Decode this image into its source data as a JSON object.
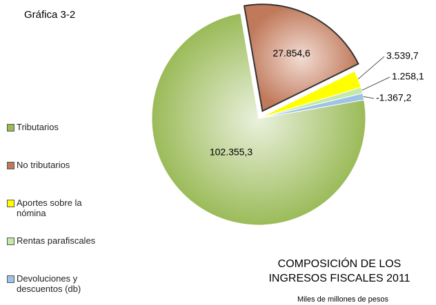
{
  "chart_data": {
    "type": "pie",
    "annotation": "Gráfica 3-2",
    "title": [
      "COMPOSICIÓN DE LOS",
      "INGRESOS FISCALES 2011"
    ],
    "subtitle": "Miles de millones de pesos",
    "categories": [
      "Tributarios",
      "No tributarios",
      "Aportes sobre la nómina",
      "Rentas parafiscales",
      "Devoluciones y descuentos (db)"
    ],
    "values": [
      102355.3,
      27854.6,
      3539.7,
      1258.1,
      -1367.2
    ],
    "value_labels": [
      "102.355,3",
      "27.854,6",
      "3.539,7",
      "1.258,1",
      "-1.367,2"
    ],
    "colors": [
      "#9bbb59",
      "#c0795a",
      "#ffff00",
      "#c6e9a8",
      "#9dc3e6"
    ],
    "legend": "left"
  }
}
